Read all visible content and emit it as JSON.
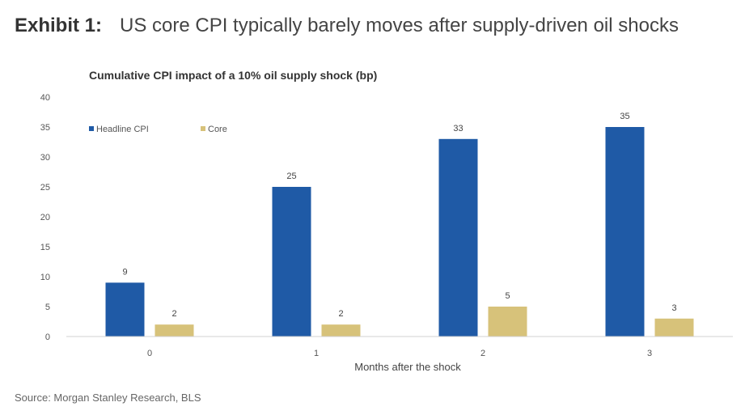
{
  "exhibit": {
    "label": "Exhibit 1:",
    "title": "US core CPI typically barely moves after supply-driven oil shocks"
  },
  "source": "Source: Morgan Stanley Research, BLS",
  "chart_data": {
    "type": "bar",
    "title": "Cumulative CPI impact of a 10% oil supply shock (bp)",
    "xlabel": "Months after the shock",
    "ylabel": "",
    "categories": [
      "0",
      "1",
      "2",
      "3"
    ],
    "ylim": [
      0,
      40
    ],
    "yticks": [
      0,
      5,
      10,
      15,
      20,
      25,
      30,
      35,
      40
    ],
    "grid": false,
    "legend_position": "top-left",
    "series": [
      {
        "name": "Headline CPI",
        "color": "#1f5aa6",
        "values": [
          9,
          25,
          33,
          35
        ],
        "labels": [
          "9",
          "25",
          "33",
          "35"
        ]
      },
      {
        "name": "Core",
        "color": "#d7c27a",
        "values": [
          2,
          2,
          5,
          3
        ],
        "labels": [
          "2",
          "2",
          "5",
          "3"
        ]
      }
    ]
  }
}
